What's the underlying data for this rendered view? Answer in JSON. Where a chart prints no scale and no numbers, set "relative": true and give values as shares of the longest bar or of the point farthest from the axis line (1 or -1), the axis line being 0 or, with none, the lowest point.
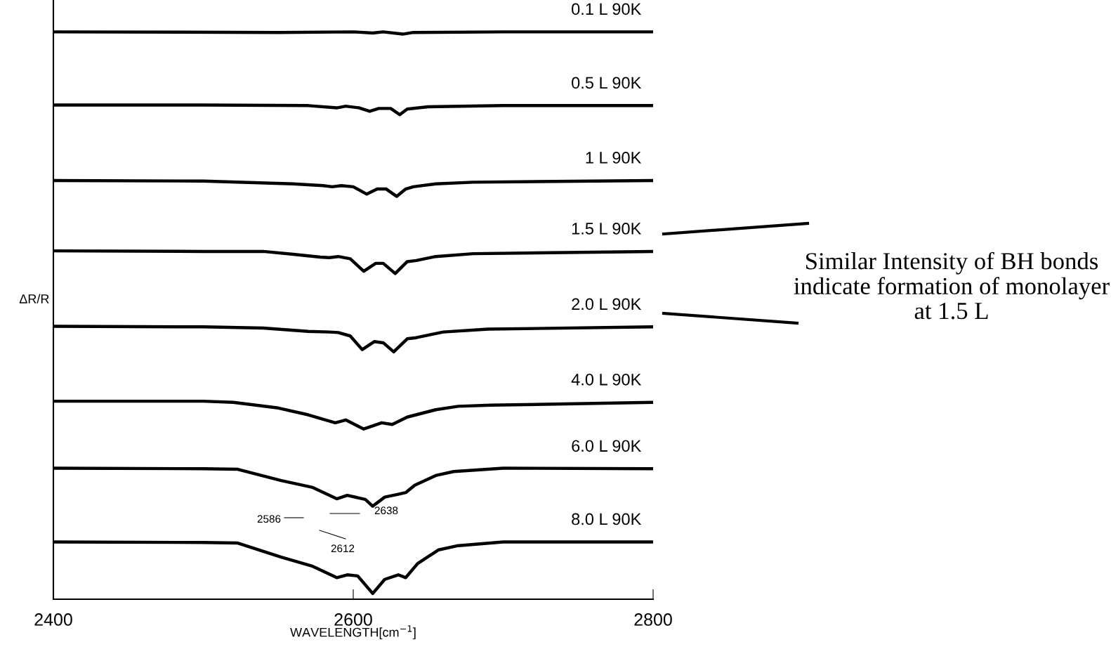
{
  "chart_data": {
    "type": "line",
    "relative": true,
    "xlabel": "WAVELENGTH[cm$^{−1}$]",
    "ylabel": "ΔR/R",
    "xlim": [
      2400,
      2800
    ],
    "xticks": [
      2400,
      2600,
      2800
    ],
    "grid": false,
    "legend": false,
    "marker": "none",
    "line_style": "solid",
    "series": [
      {
        "name": "0.1 L 90K",
        "color": "#000000",
        "x": [
          2400,
          2550,
          2600,
          2613,
          2620,
          2633,
          2640,
          2700,
          2800
        ],
        "values": [
          1.0,
          0.999,
          1.0,
          0.998,
          1.0,
          0.996,
          0.999,
          1.0,
          1.0
        ]
      },
      {
        "name": "0.5 L 90K",
        "color": "#000000",
        "x": [
          2400,
          2500,
          2570,
          2589,
          2595,
          2604,
          2611,
          2617,
          2625,
          2631,
          2636,
          2650,
          2700,
          2800
        ],
        "values": [
          0.871,
          0.871,
          0.87,
          0.866,
          0.869,
          0.866,
          0.86,
          0.865,
          0.865,
          0.854,
          0.864,
          0.868,
          0.87,
          0.87
        ]
      },
      {
        "name": "1 L 90K",
        "color": "#000000",
        "x": [
          2400,
          2500,
          2560,
          2580,
          2586,
          2592,
          2600,
          2609,
          2616,
          2622,
          2629,
          2635,
          2640,
          2655,
          2680,
          2800
        ],
        "values": [
          0.738,
          0.737,
          0.732,
          0.729,
          0.727,
          0.729,
          0.727,
          0.714,
          0.723,
          0.723,
          0.71,
          0.723,
          0.727,
          0.732,
          0.735,
          0.738
        ]
      },
      {
        "name": "1.5 L 90K",
        "color": "#000000",
        "x": [
          2400,
          2500,
          2540,
          2560,
          2578,
          2584,
          2590,
          2598,
          2607,
          2615,
          2620,
          2628,
          2636,
          2642,
          2655,
          2680,
          2800
        ],
        "values": [
          0.614,
          0.613,
          0.613,
          0.608,
          0.603,
          0.602,
          0.604,
          0.6,
          0.578,
          0.592,
          0.592,
          0.574,
          0.595,
          0.597,
          0.604,
          0.609,
          0.613
        ]
      },
      {
        "name": "2.0 L 90K",
        "color": "#000000",
        "x": [
          2400,
          2500,
          2540,
          2570,
          2584,
          2590,
          2598,
          2606,
          2614,
          2620,
          2627,
          2636,
          2642,
          2660,
          2690,
          2800
        ],
        "values": [
          0.481,
          0.48,
          0.478,
          0.472,
          0.471,
          0.47,
          0.464,
          0.44,
          0.454,
          0.452,
          0.436,
          0.459,
          0.461,
          0.471,
          0.476,
          0.48
        ]
      },
      {
        "name": "4.0 L 90K",
        "color": "#000000",
        "x": [
          2400,
          2500,
          2520,
          2550,
          2570,
          2588,
          2595,
          2607,
          2619,
          2626,
          2636,
          2655,
          2670,
          2692,
          2800
        ],
        "values": [
          0.349,
          0.349,
          0.347,
          0.337,
          0.325,
          0.311,
          0.316,
          0.3,
          0.311,
          0.308,
          0.321,
          0.334,
          0.34,
          0.342,
          0.347
        ]
      },
      {
        "name": "6.0 L 90K",
        "color": "#000000",
        "x": [
          2400,
          2500,
          2523,
          2552,
          2573,
          2589,
          2596,
          2608,
          2613,
          2621,
          2630,
          2635,
          2641,
          2655,
          2667,
          2700,
          2800
        ],
        "values": [
          0.231,
          0.23,
          0.229,
          0.209,
          0.197,
          0.177,
          0.183,
          0.176,
          0.164,
          0.18,
          0.185,
          0.188,
          0.201,
          0.218,
          0.225,
          0.231,
          0.23
        ]
      },
      {
        "name": "8.0 L 90K",
        "color": "#000000",
        "x": [
          2400,
          2500,
          2523,
          2552,
          2573,
          2589,
          2596,
          2603,
          2613,
          2621,
          2630,
          2635,
          2643,
          2657,
          2669,
          2700,
          2800
        ],
        "values": [
          0.101,
          0.1,
          0.099,
          0.074,
          0.058,
          0.038,
          0.043,
          0.041,
          0.01,
          0.035,
          0.043,
          0.038,
          0.063,
          0.087,
          0.094,
          0.101,
          0.101
        ]
      }
    ],
    "annotations": [
      "2586",
      "2638",
      "2612",
      "Similar Intensity of BH bonds indicate formation of monolayer at 1.5 L"
    ]
  }
}
